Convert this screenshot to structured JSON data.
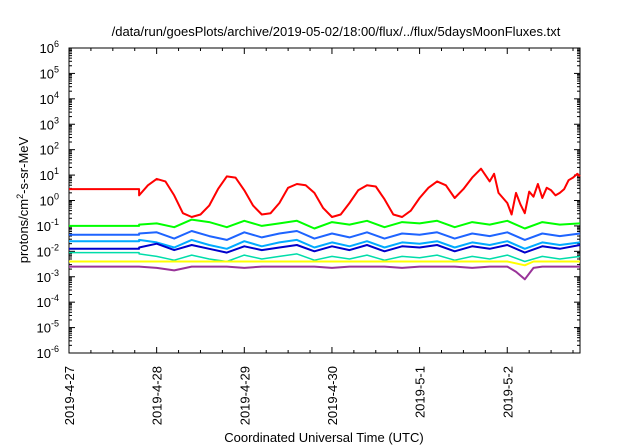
{
  "chart_data": {
    "type": "line",
    "title": "/data/run/goesPlots/archive/2019-05-02/18:00/flux/../flux/5daysMoonFluxes.txt",
    "xlabel": "Coordinated Universal Time (UTC)",
    "ylabel_prefix": "protons/cm",
    "ylabel_sup": "2",
    "ylabel_suffix": "-s-sr-MeV",
    "xlim": [
      0,
      5.83
    ],
    "ylim_log10": [
      -6,
      6
    ],
    "yscale": "log",
    "x_tick_labels": [
      "2019-4-27",
      "2019-4-28",
      "2019-4-29",
      "2019-4-30",
      "2019-5-1",
      "2019-5-2"
    ],
    "y_tick_base": "10",
    "y_tick_exponents": [
      "-6",
      "-5",
      "-4",
      "-3",
      "-2",
      "-1",
      "0",
      "1",
      "2",
      "3",
      "4",
      "5",
      "6"
    ],
    "grid": false,
    "legend": "none",
    "x_unit": "days since 2019-04-27 00:00 UTC",
    "y_unit": "log10 of flux",
    "series": [
      {
        "color": "#ff0000",
        "width": 2,
        "x": [
          0,
          0.4,
          0.8,
          0.8,
          0.9,
          1.0,
          1.1,
          1.2,
          1.3,
          1.4,
          1.5,
          1.6,
          1.7,
          1.8,
          1.9,
          2.0,
          2.1,
          2.2,
          2.3,
          2.4,
          2.5,
          2.6,
          2.7,
          2.8,
          2.9,
          3.0,
          3.1,
          3.2,
          3.3,
          3.4,
          3.5,
          3.6,
          3.7,
          3.8,
          3.9,
          4.0,
          4.1,
          4.2,
          4.3,
          4.4,
          4.5,
          4.6,
          4.7,
          4.8,
          4.85,
          4.9,
          5.0,
          5.05,
          5.1,
          5.15,
          5.2,
          5.25,
          5.3,
          5.35,
          5.4,
          5.45,
          5.5,
          5.55,
          5.6,
          5.65,
          5.7,
          5.75,
          5.8,
          5.83
        ],
        "y": [
          0.45,
          0.45,
          0.45,
          0.2,
          0.6,
          0.85,
          0.75,
          0.2,
          -0.5,
          -0.65,
          -0.55,
          -0.2,
          0.45,
          0.95,
          0.9,
          0.4,
          -0.2,
          -0.55,
          -0.5,
          -0.1,
          0.5,
          0.65,
          0.6,
          0.3,
          -0.3,
          -0.65,
          -0.55,
          -0.1,
          0.4,
          0.6,
          0.55,
          0.05,
          -0.55,
          -0.65,
          -0.4,
          0.1,
          0.5,
          0.75,
          0.6,
          0.1,
          0.45,
          0.9,
          1.25,
          0.75,
          1.05,
          0.3,
          -0.1,
          -0.55,
          0.3,
          -0.15,
          -0.5,
          0.35,
          0.15,
          0.65,
          0.1,
          0.5,
          0.4,
          0.2,
          0.3,
          0.45,
          0.8,
          0.9,
          1.05,
          0.95
        ]
      },
      {
        "color": "#00ff00",
        "width": 2,
        "x": [
          0,
          0.8,
          0.8,
          1.0,
          1.2,
          1.4,
          1.6,
          1.8,
          2.0,
          2.2,
          2.4,
          2.6,
          2.8,
          3.0,
          3.2,
          3.4,
          3.6,
          3.8,
          4.0,
          4.2,
          4.4,
          4.6,
          4.8,
          5.0,
          5.2,
          5.4,
          5.6,
          5.83
        ],
        "y": [
          -1.0,
          -1.0,
          -0.95,
          -0.9,
          -1.05,
          -0.75,
          -0.85,
          -1.05,
          -0.8,
          -1.0,
          -0.9,
          -0.8,
          -1.1,
          -0.85,
          -0.95,
          -0.8,
          -1.05,
          -0.85,
          -0.9,
          -0.8,
          -1.05,
          -0.85,
          -0.95,
          -0.8,
          -1.1,
          -0.85,
          -0.95,
          -0.9
        ]
      },
      {
        "color": "#1e64ff",
        "width": 2,
        "x": [
          0,
          0.8,
          0.8,
          1.0,
          1.2,
          1.4,
          1.6,
          1.8,
          2.0,
          2.2,
          2.4,
          2.6,
          2.8,
          3.0,
          3.2,
          3.4,
          3.6,
          3.8,
          4.0,
          4.2,
          4.4,
          4.6,
          4.8,
          5.0,
          5.2,
          5.4,
          5.6,
          5.83
        ],
        "y": [
          -1.35,
          -1.35,
          -1.3,
          -1.25,
          -1.5,
          -1.2,
          -1.4,
          -1.55,
          -1.25,
          -1.45,
          -1.3,
          -1.2,
          -1.5,
          -1.3,
          -1.45,
          -1.25,
          -1.5,
          -1.3,
          -1.35,
          -1.25,
          -1.5,
          -1.3,
          -1.4,
          -1.25,
          -1.55,
          -1.3,
          -1.4,
          -1.3
        ]
      },
      {
        "color": "#00aaff",
        "width": 2,
        "x": [
          0,
          0.8,
          0.8,
          1.0,
          1.2,
          1.4,
          1.6,
          1.8,
          2.0,
          2.2,
          2.4,
          2.6,
          2.8,
          3.0,
          3.2,
          3.4,
          3.6,
          3.8,
          4.0,
          4.2,
          4.4,
          4.6,
          4.8,
          5.0,
          5.2,
          5.4,
          5.6,
          5.83
        ],
        "y": [
          -1.6,
          -1.6,
          -1.55,
          -1.65,
          -1.85,
          -1.55,
          -1.75,
          -1.9,
          -1.6,
          -1.8,
          -1.65,
          -1.55,
          -1.85,
          -1.65,
          -1.8,
          -1.6,
          -1.85,
          -1.65,
          -1.7,
          -1.6,
          -1.85,
          -1.65,
          -1.75,
          -1.6,
          -1.9,
          -1.65,
          -1.75,
          -1.65
        ]
      },
      {
        "color": "#0000cc",
        "width": 2,
        "x": [
          0,
          0.8,
          0.8,
          1.0,
          1.2,
          1.4,
          1.6,
          1.8,
          2.0,
          2.2,
          2.4,
          2.6,
          2.8,
          3.0,
          3.2,
          3.4,
          3.6,
          3.8,
          4.0,
          4.2,
          4.4,
          4.6,
          4.8,
          5.0,
          5.2,
          5.4,
          5.6,
          5.83
        ],
        "y": [
          -1.9,
          -1.9,
          -1.85,
          -1.7,
          -1.95,
          -1.75,
          -1.9,
          -2.05,
          -1.8,
          -1.95,
          -1.85,
          -1.75,
          -2.0,
          -1.8,
          -1.95,
          -1.75,
          -2.0,
          -1.8,
          -1.85,
          -1.75,
          -2.0,
          -1.8,
          -1.9,
          -1.75,
          -2.05,
          -1.8,
          -1.9,
          -1.75
        ]
      },
      {
        "color": "#00ddaa",
        "width": 1.5,
        "x": [
          0,
          0.8,
          0.8,
          1.0,
          1.2,
          1.4,
          1.6,
          1.8,
          2.0,
          2.2,
          2.4,
          2.6,
          2.8,
          3.0,
          3.2,
          3.4,
          3.6,
          3.8,
          4.0,
          4.2,
          4.4,
          4.6,
          4.8,
          5.0,
          5.2,
          5.4,
          5.6,
          5.83
        ],
        "y": [
          -2.05,
          -2.05,
          -2.1,
          -2.2,
          -2.35,
          -2.15,
          -2.3,
          -2.4,
          -2.15,
          -2.3,
          -2.2,
          -2.1,
          -2.35,
          -2.2,
          -2.3,
          -2.15,
          -2.35,
          -2.2,
          -2.25,
          -2.15,
          -2.35,
          -2.2,
          -2.3,
          -2.15,
          -2.4,
          -2.2,
          -2.3,
          -2.2
        ]
      },
      {
        "color": "#ffff00",
        "width": 2,
        "x": [
          0,
          0.8,
          1.5,
          2.0,
          2.6,
          3.2,
          3.8,
          4.4,
          5.0,
          5.2,
          5.3,
          5.6,
          5.83
        ],
        "y": [
          -2.4,
          -2.4,
          -2.4,
          -2.4,
          -2.4,
          -2.4,
          -2.4,
          -2.4,
          -2.4,
          -2.55,
          -2.4,
          -2.4,
          -2.4
        ]
      },
      {
        "color": "#993399",
        "width": 2,
        "x": [
          0,
          0.8,
          1.0,
          1.2,
          1.4,
          1.6,
          1.8,
          2.0,
          2.2,
          2.4,
          2.6,
          2.8,
          3.0,
          3.2,
          3.4,
          3.6,
          3.8,
          4.0,
          4.2,
          4.4,
          4.6,
          4.8,
          5.0,
          5.1,
          5.2,
          5.3,
          5.4,
          5.6,
          5.83
        ],
        "y": [
          -2.6,
          -2.6,
          -2.65,
          -2.75,
          -2.6,
          -2.6,
          -2.6,
          -2.65,
          -2.6,
          -2.6,
          -2.6,
          -2.6,
          -2.65,
          -2.6,
          -2.6,
          -2.6,
          -2.65,
          -2.6,
          -2.6,
          -2.6,
          -2.65,
          -2.6,
          -2.6,
          -2.8,
          -3.1,
          -2.65,
          -2.6,
          -2.6,
          -2.6
        ]
      }
    ]
  }
}
